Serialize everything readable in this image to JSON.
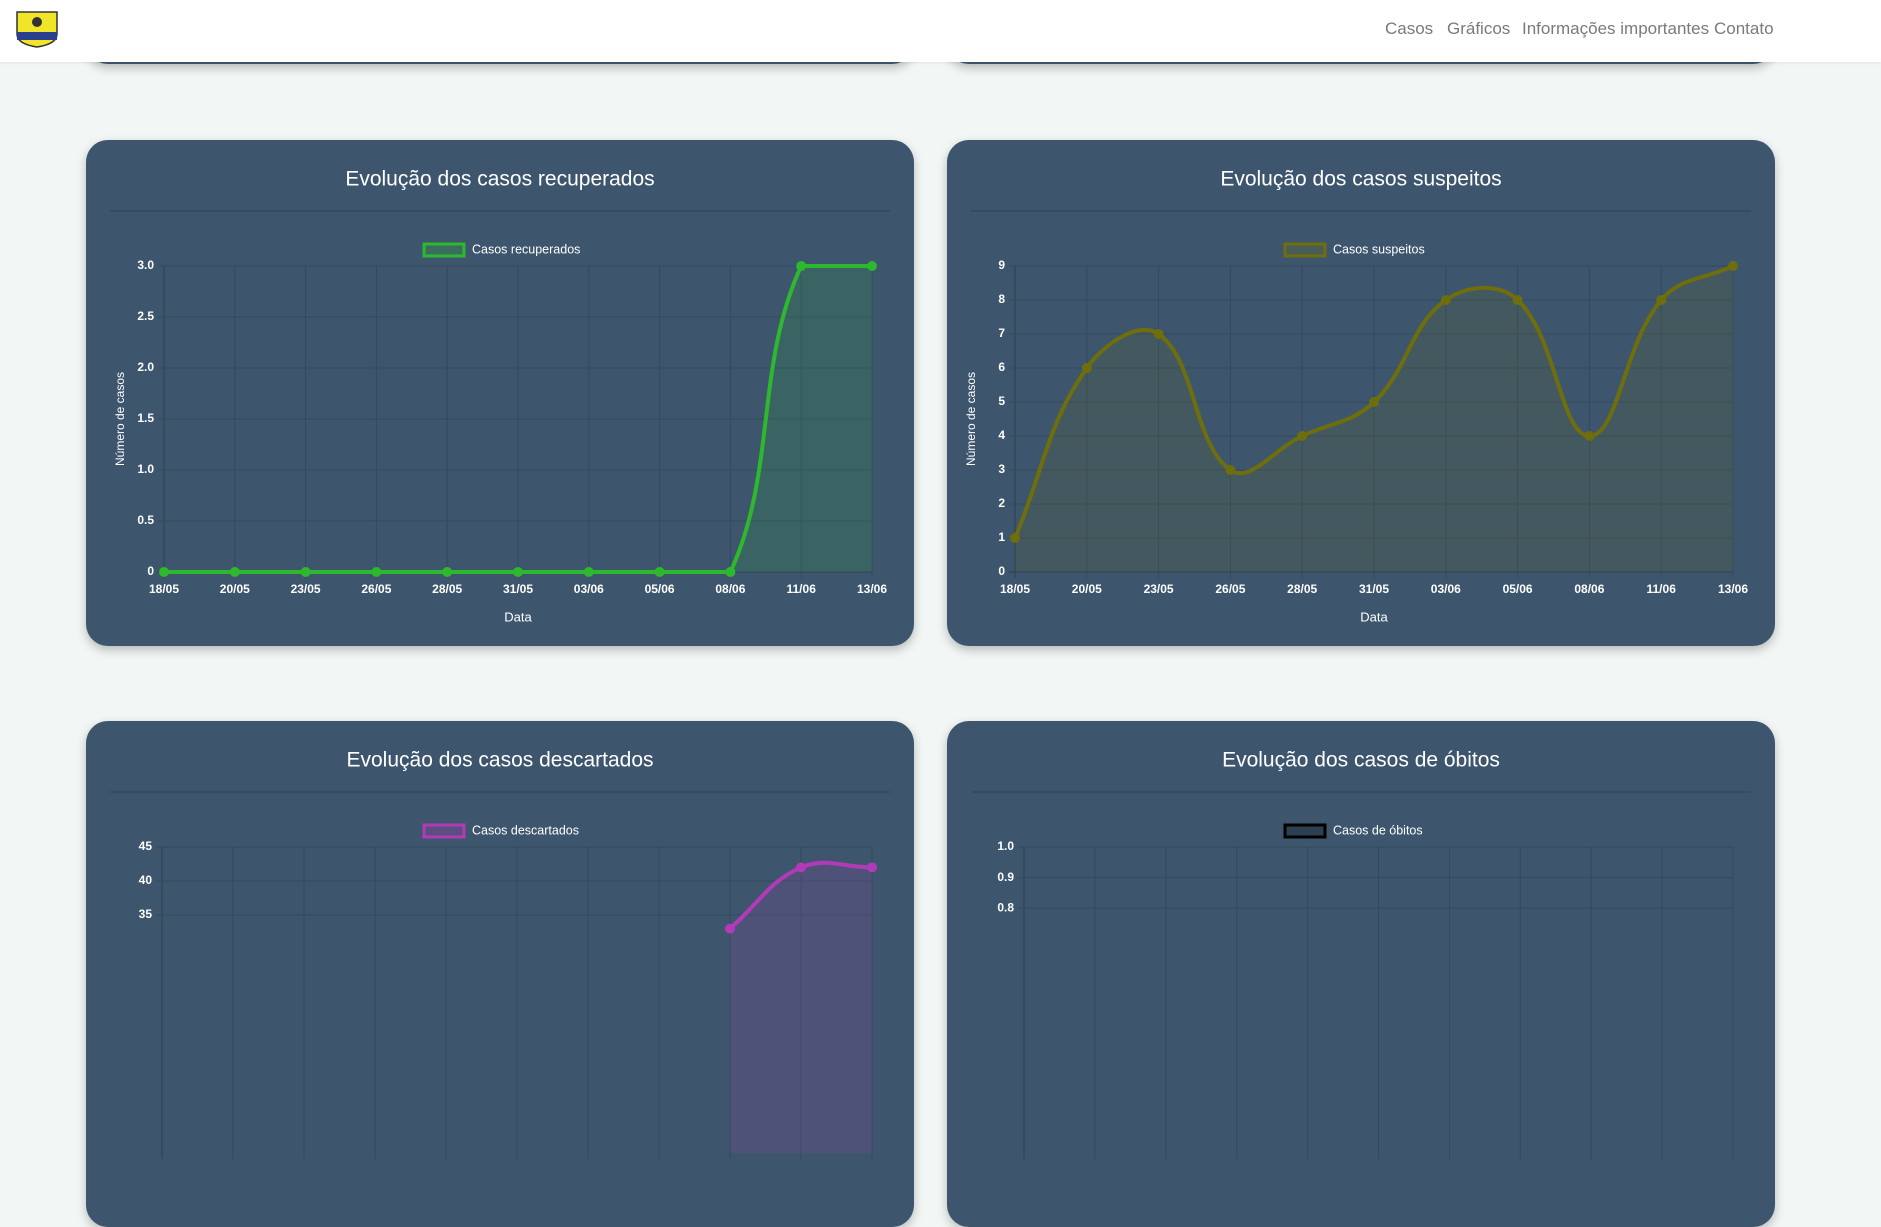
{
  "nav": {
    "items": [
      "Casos",
      "Gráficos",
      "Informações importantes",
      "Contato"
    ]
  },
  "chart_data": [
    {
      "type": "line",
      "title": "Evolução dos casos recuperados",
      "categories": [
        "18/05",
        "20/05",
        "23/05",
        "26/05",
        "28/05",
        "31/05",
        "03/06",
        "05/06",
        "08/06",
        "11/06",
        "13/06"
      ],
      "series": [
        {
          "name": "Casos recuperados",
          "color": "#2eb82e",
          "values": [
            0,
            0,
            0,
            0,
            0,
            0,
            0,
            0,
            0,
            3,
            3
          ]
        }
      ],
      "ylim": [
        0,
        3
      ],
      "yticks": [
        0,
        0.5,
        {
          "value": 1,
          "label": "1.0"
        },
        1.5,
        {
          "value": 2,
          "label": "2.0"
        },
        2.5,
        {
          "value": 3,
          "label": "3.0"
        }
      ],
      "xlabel": "Data",
      "ylabel": "Número de casos",
      "grid": true
    },
    {
      "type": "line",
      "title": "Evolução dos casos suspeitos",
      "categories": [
        "18/05",
        "20/05",
        "23/05",
        "26/05",
        "28/05",
        "31/05",
        "03/06",
        "05/06",
        "08/06",
        "11/06",
        "13/06"
      ],
      "series": [
        {
          "name": "Casos suspeitos",
          "color": "#6e6e0c",
          "values": [
            1,
            6,
            7,
            3,
            4,
            5,
            8,
            8,
            4,
            8,
            9
          ]
        }
      ],
      "ylim": [
        0,
        9
      ],
      "yticks": [
        0,
        1,
        2,
        3,
        4,
        5,
        6,
        7,
        8,
        9
      ],
      "xlabel": "Data",
      "ylabel": "Número de casos",
      "grid": true
    },
    {
      "type": "line",
      "title": "Evolução dos casos descartados",
      "series": [
        {
          "name": "Casos descartados",
          "color": "#b23ab8",
          "values": [
            null,
            null,
            null,
            null,
            null,
            null,
            null,
            null,
            33,
            42,
            42
          ]
        }
      ],
      "ylim": [
        0,
        45
      ],
      "yticks": [
        35,
        40,
        45
      ],
      "grid": true
    },
    {
      "type": "line",
      "title": "Evolução dos casos de óbitos",
      "series": [
        {
          "name": "Casos de óbitos",
          "color": "#000000"
        }
      ],
      "ylim": [
        0,
        1
      ],
      "yticks": [
        0.8,
        0.9,
        {
          "value": 1,
          "label": "1.0"
        }
      ],
      "grid": true
    }
  ]
}
